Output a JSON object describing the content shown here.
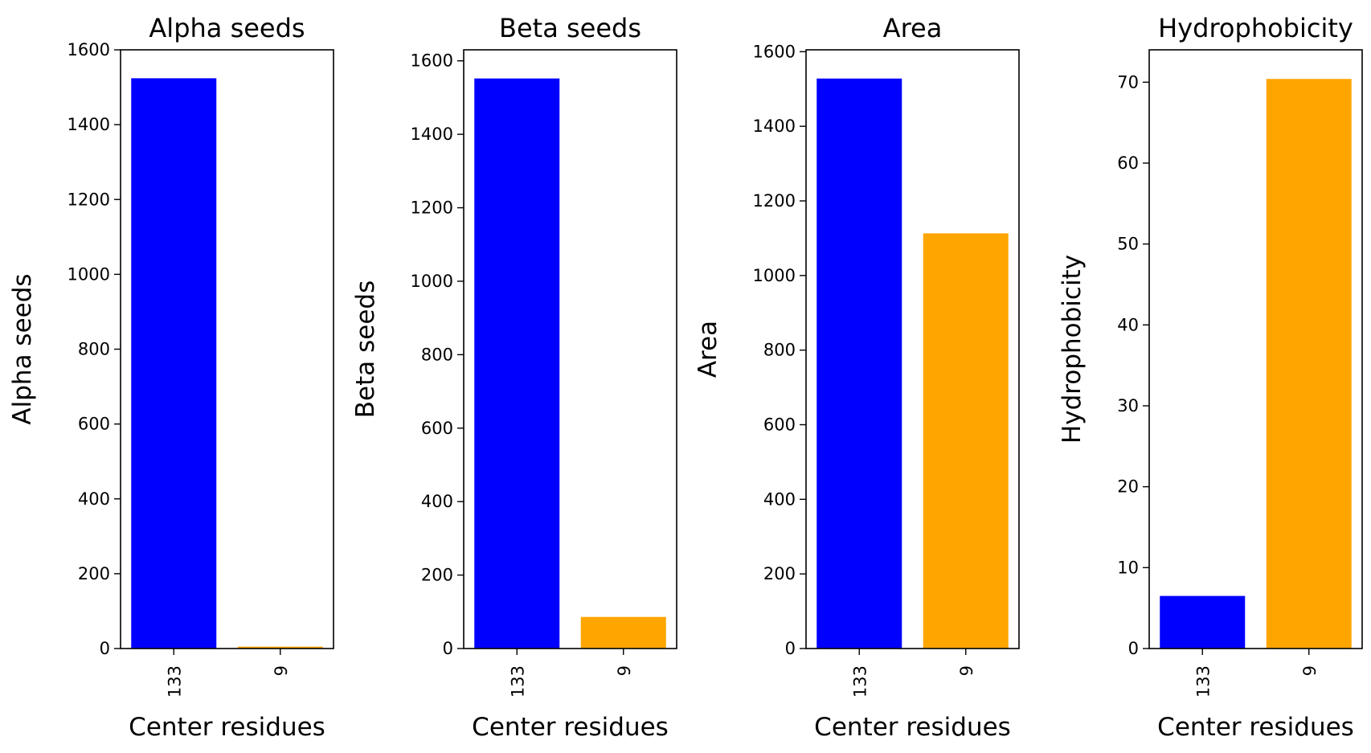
{
  "chart_data": [
    {
      "type": "bar",
      "title": "Alpha seeds",
      "xlabel": "Center residues",
      "ylabel": "Alpha seeds",
      "categories": [
        "133",
        "9"
      ],
      "values": [
        1524,
        5
      ],
      "colors": [
        "#0000ff",
        "#ffa500"
      ],
      "ylim": [
        0,
        1600
      ],
      "yticks": [
        0,
        200,
        400,
        600,
        800,
        1000,
        1200,
        1400,
        1600
      ],
      "grid": false
    },
    {
      "type": "bar",
      "title": "Beta seeds",
      "xlabel": "Center residues",
      "ylabel": "Beta seeds",
      "categories": [
        "133",
        "9"
      ],
      "values": [
        1552,
        86
      ],
      "colors": [
        "#0000ff",
        "#ffa500"
      ],
      "ylim": [
        0,
        1630
      ],
      "yticks": [
        0,
        200,
        400,
        600,
        800,
        1000,
        1200,
        1400,
        1600
      ],
      "grid": false
    },
    {
      "type": "bar",
      "title": "Area",
      "xlabel": "Center residues",
      "ylabel": "Area",
      "categories": [
        "133",
        "9"
      ],
      "values": [
        1528,
        1113
      ],
      "colors": [
        "#0000ff",
        "#ffa500"
      ],
      "ylim": [
        0,
        1605
      ],
      "yticks": [
        0,
        200,
        400,
        600,
        800,
        1000,
        1200,
        1400,
        1600
      ],
      "grid": false
    },
    {
      "type": "bar",
      "title": "Hydrophobicity",
      "xlabel": "Center residues",
      "ylabel": "Hydrophobicity",
      "categories": [
        "133",
        "9"
      ],
      "values": [
        6.5,
        70.4
      ],
      "colors": [
        "#0000ff",
        "#ffa500"
      ],
      "ylim": [
        0,
        74
      ],
      "yticks": [
        0,
        10,
        20,
        30,
        40,
        50,
        60,
        70
      ],
      "grid": false
    }
  ]
}
